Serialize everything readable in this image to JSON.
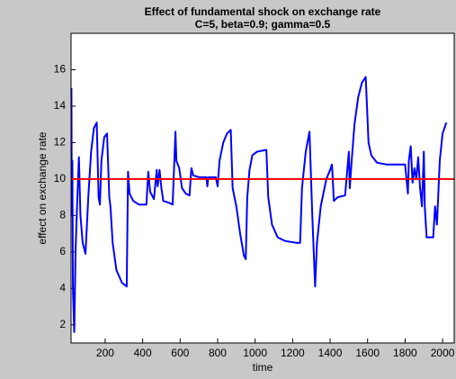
{
  "chart_data": {
    "type": "line",
    "title": "Effect of fundamental shock on exchange rate",
    "subtitle": "C=5, beta=0.9; gamma=0.5",
    "x_label": "time",
    "y_label": "effect on exchange rate",
    "x": [
      20,
      22,
      25,
      28,
      35,
      42,
      50,
      60,
      68,
      80,
      95,
      110,
      125,
      140,
      155,
      165,
      172,
      180,
      195,
      210,
      222,
      228,
      240,
      260,
      290,
      315,
      322,
      330,
      350,
      380,
      420,
      430,
      440,
      460,
      475,
      480,
      490,
      500,
      510,
      540,
      560,
      575,
      580,
      595,
      610,
      630,
      650,
      660,
      670,
      700,
      740,
      745,
      750,
      790,
      800,
      810,
      830,
      850,
      870,
      880,
      900,
      920,
      940,
      950,
      958,
      970,
      985,
      1010,
      1060,
      1070,
      1090,
      1120,
      1160,
      1220,
      1240,
      1250,
      1270,
      1290,
      1305,
      1320,
      1330,
      1350,
      1380,
      1400,
      1410,
      1420,
      1440,
      1480,
      1490,
      1500,
      1505,
      1515,
      1530,
      1550,
      1570,
      1590,
      1605,
      1620,
      1650,
      1700,
      1800,
      1815,
      1820,
      1830,
      1840,
      1850,
      1860,
      1870,
      1880,
      1890,
      1900,
      1905,
      1915,
      1950,
      1960,
      1970,
      1985,
      2000,
      2020
    ],
    "series": [
      {
        "color": "#0000ff",
        "values": [
          15,
          8,
          11,
          4,
          1.6,
          6,
          8.5,
          11.2,
          8,
          6.5,
          5.9,
          9,
          11.5,
          12.8,
          13.1,
          9,
          8.6,
          11,
          12.3,
          12.5,
          9,
          8.5,
          6.5,
          5,
          4.3,
          4.1,
          10.4,
          9.2,
          8.8,
          8.6,
          8.6,
          10.4,
          9.3,
          8.9,
          10.5,
          9.6,
          10.5,
          9.5,
          8.8,
          8.7,
          8.6,
          12.6,
          11,
          10.6,
          9.5,
          9.2,
          9.1,
          10.6,
          10.2,
          10.1,
          10.1,
          9.6,
          10.1,
          10.1,
          9.6,
          11,
          12,
          12.5,
          12.7,
          9.5,
          8.5,
          7,
          5.8,
          5.6,
          9,
          10.5,
          11.3,
          11.5,
          11.6,
          9,
          7.5,
          6.8,
          6.6,
          6.5,
          6.5,
          9.5,
          11.5,
          12.6,
          8,
          4.1,
          6.5,
          8.5,
          10,
          10.5,
          10.8,
          8.8,
          9,
          9.1,
          10.3,
          11.5,
          9.5,
          11,
          13,
          14.5,
          15.3,
          15.6,
          12,
          11.3,
          10.9,
          10.8,
          10.8,
          9.2,
          11,
          11.8,
          9.8,
          10.6,
          10,
          11.2,
          9.5,
          8.5,
          11.5,
          8.5,
          6.8,
          6.8,
          8.5,
          7.5,
          11,
          12.5,
          13.1
        ]
      }
    ],
    "reference_line": {
      "y": 10,
      "color": "#ff0000"
    },
    "xlim": [
      18,
      2062
    ],
    "ylim": [
      1,
      18
    ],
    "xticks": [
      200,
      400,
      600,
      800,
      1000,
      1200,
      1400,
      1600,
      1800,
      2000
    ],
    "yticks": [
      2,
      4,
      6,
      8,
      10,
      12,
      14,
      16
    ]
  }
}
